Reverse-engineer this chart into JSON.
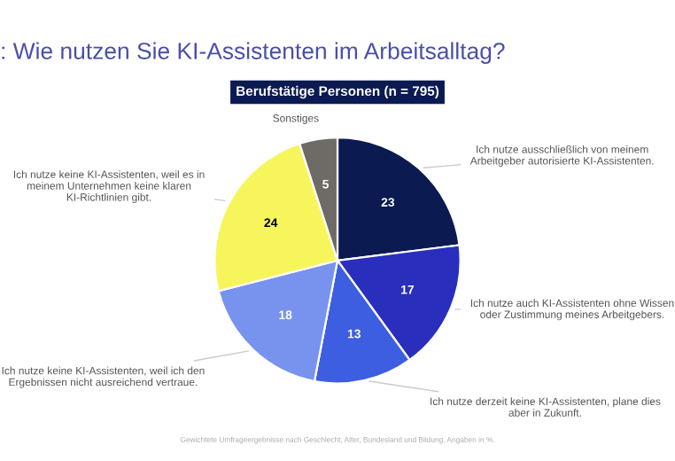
{
  "chart_data": {
    "type": "pie",
    "title": ": Wie nutzen Sie KI-Assistenten im Arbeitsalltag?",
    "subtitle": "Berufstätige Personen (n = 795)",
    "categories": [
      "Ich nutze ausschließlich von meinem Arbeitgeber autorisierte KI-Assistenten.",
      "Ich nutze auch KI-Assistenten ohne Wissen oder Zustimmung meines Arbeitgebers.",
      "Ich nutze derzeit keine KI-Assistenten, plane dies aber in Zukunft.",
      "Ich nutze keine KI-Assistenten, weil ich den Ergebnissen nicht ausreichend vertraue.",
      "Ich nutze keine KI-Assistenten, weil es in meinem Unternehmen keine klaren KI-Richtlinien gibt.",
      "Sonstiges"
    ],
    "values": [
      23,
      17,
      13,
      18,
      24,
      5
    ],
    "colors": [
      "#0b1a50",
      "#2a2ebd",
      "#3d5ee0",
      "#7893ee",
      "#f6f55c",
      "#6e6b66"
    ],
    "data_labels": true,
    "annotations": [
      "Gewichtete Umfrageergebnisse nach Geschlecht, Alter, Bundesland und Bildung. Angaben in %."
    ]
  }
}
